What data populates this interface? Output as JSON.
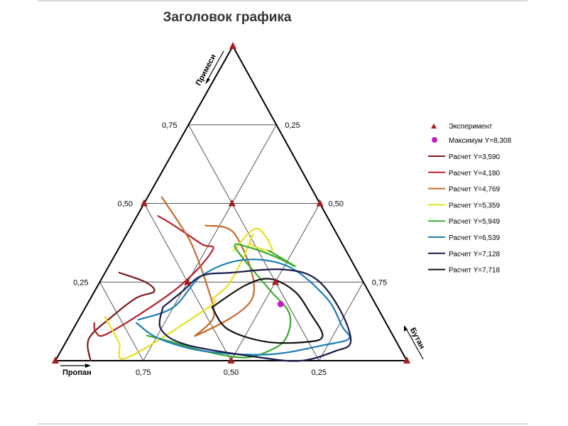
{
  "chart_data": {
    "type": "ternary",
    "title": "Заголовок графика",
    "axes": {
      "top": "Примеси",
      "left": "Пропан",
      "right": "Бутан"
    },
    "ticks": {
      "left_side": [
        "0,75",
        "0,50",
        "0,25"
      ],
      "right_side": [
        "0,25",
        "0,50",
        "0,75"
      ],
      "bottom_side": [
        "0,75",
        "0,50",
        "0,25"
      ]
    },
    "grid": true,
    "legend_position": "right",
    "experiment": {
      "label": "Эксперимент",
      "color": "#a31f1f",
      "points": [
        {
          "a": 1,
          "b": 0,
          "c": 0
        },
        {
          "a": 0,
          "b": 1,
          "c": 0
        },
        {
          "a": 0,
          "b": 0,
          "c": 1
        },
        {
          "a": 0.5,
          "b": 0.5,
          "c": 0
        },
        {
          "a": 0.5,
          "b": 0,
          "c": 0.5
        },
        {
          "a": 0,
          "b": 0.5,
          "c": 0.5
        },
        {
          "a": 0.5,
          "b": 0.25,
          "c": 0.25
        },
        {
          "a": 0.25,
          "b": 0.5,
          "c": 0.25
        },
        {
          "a": 0.25,
          "b": 0.25,
          "c": 0.5
        }
      ]
    },
    "maximum": {
      "label": "Максимум Y=8,308",
      "color": "#c020c0",
      "point": {
        "a": 0.18,
        "b": 0.27,
        "c": 0.55
      }
    },
    "contours": [
      {
        "name": "Расчет Y=3,590",
        "color": "#7a1a1a",
        "points": [
          [
            0.28,
            0.68,
            0.04
          ],
          [
            0.25,
            0.62,
            0.13
          ],
          [
            0.22,
            0.61,
            0.17
          ],
          [
            0.2,
            0.67,
            0.13
          ],
          [
            0.14,
            0.77,
            0.09
          ],
          [
            0.07,
            0.87,
            0.06
          ],
          [
            0.0,
            0.9,
            0.1
          ]
        ]
      },
      {
        "name": "Расчет Y=4,180",
        "color": "#b3222a",
        "points": [
          [
            0.12,
            0.83,
            0.05
          ],
          [
            0.09,
            0.84,
            0.07
          ],
          [
            0.09,
            0.8,
            0.11
          ],
          [
            0.23,
            0.54,
            0.23
          ],
          [
            0.35,
            0.38,
            0.27
          ],
          [
            0.37,
            0.4,
            0.23
          ],
          [
            0.43,
            0.45,
            0.12
          ],
          [
            0.46,
            0.48,
            0.06
          ]
        ]
      },
      {
        "name": "Расчет Y=4,769",
        "color": "#c76a2a",
        "points": [
          [
            0.52,
            0.44,
            0.04
          ],
          [
            0.42,
            0.43,
            0.15
          ],
          [
            0.36,
            0.43,
            0.21
          ],
          [
            0.24,
            0.45,
            0.31
          ],
          [
            0.14,
            0.48,
            0.38
          ],
          [
            0.08,
            0.56,
            0.36
          ],
          [
            0.2,
            0.34,
            0.46
          ],
          [
            0.4,
            0.29,
            0.31
          ],
          [
            0.43,
            0.36,
            0.21
          ]
        ]
      },
      {
        "name": "Расчет Y=5,359",
        "color": "#e8e020",
        "points": [
          [
            0.14,
            0.79,
            0.07
          ],
          [
            0.06,
            0.79,
            0.15
          ],
          [
            0.01,
            0.79,
            0.2
          ],
          [
            0.17,
            0.48,
            0.35
          ],
          [
            0.2,
            0.45,
            0.35
          ],
          [
            0.24,
            0.39,
            0.37
          ],
          [
            0.32,
            0.31,
            0.37
          ],
          [
            0.4,
            0.24,
            0.36
          ],
          [
            0.37,
            0.26,
            0.37
          ],
          [
            0.35,
            0.21,
            0.44
          ],
          [
            0.42,
            0.22,
            0.36
          ],
          [
            0.35,
            0.32,
            0.33
          ]
        ]
      },
      {
        "name": "Расчет Y=5,949",
        "color": "#3cab2e",
        "points": [
          [
            0.08,
            0.7,
            0.22
          ],
          [
            0.06,
            0.64,
            0.3
          ],
          [
            0.03,
            0.56,
            0.41
          ],
          [
            0.01,
            0.46,
            0.53
          ],
          [
            0.03,
            0.38,
            0.59
          ],
          [
            0.07,
            0.31,
            0.62
          ],
          [
            0.15,
            0.26,
            0.59
          ],
          [
            0.23,
            0.28,
            0.49
          ],
          [
            0.36,
            0.31,
            0.33
          ],
          [
            0.36,
            0.27,
            0.37
          ],
          [
            0.33,
            0.21,
            0.46
          ],
          [
            0.3,
            0.17,
            0.53
          ],
          [
            0.35,
            0.22,
            0.43
          ]
        ]
      },
      {
        "name": "Расчет Y=6,539",
        "color": "#1b7fb5",
        "points": [
          [
            0.12,
            0.71,
            0.17
          ],
          [
            0.07,
            0.67,
            0.26
          ],
          [
            0.03,
            0.56,
            0.41
          ],
          [
            0.02,
            0.38,
            0.6
          ],
          [
            0.05,
            0.21,
            0.74
          ],
          [
            0.07,
            0.13,
            0.8
          ],
          [
            0.11,
            0.13,
            0.76
          ],
          [
            0.2,
            0.13,
            0.67
          ],
          [
            0.3,
            0.19,
            0.51
          ],
          [
            0.32,
            0.31,
            0.37
          ],
          [
            0.27,
            0.45,
            0.28
          ],
          [
            0.17,
            0.58,
            0.25
          ],
          [
            0.13,
            0.7,
            0.17
          ]
        ]
      },
      {
        "name": "Расчет Y=7,128",
        "color": "#1a1a4a",
        "points": [
          [
            0.17,
            0.61,
            0.22
          ],
          [
            0.1,
            0.65,
            0.25
          ],
          [
            0.05,
            0.6,
            0.35
          ],
          [
            0.01,
            0.41,
            0.58
          ],
          [
            0.0,
            0.3,
            0.7
          ],
          [
            0.03,
            0.19,
            0.78
          ],
          [
            0.06,
            0.13,
            0.81
          ],
          [
            0.16,
            0.11,
            0.73
          ],
          [
            0.26,
            0.13,
            0.61
          ],
          [
            0.29,
            0.21,
            0.5
          ],
          [
            0.28,
            0.36,
            0.36
          ],
          [
            0.27,
            0.45,
            0.28
          ],
          [
            0.22,
            0.53,
            0.25
          ],
          [
            0.17,
            0.61,
            0.22
          ]
        ]
      },
      {
        "name": "Расчет Y=7,718",
        "color": "#111111",
        "points": [
          [
            0.17,
            0.47,
            0.36
          ],
          [
            0.1,
            0.46,
            0.44
          ],
          [
            0.06,
            0.37,
            0.57
          ],
          [
            0.06,
            0.25,
            0.69
          ],
          [
            0.08,
            0.2,
            0.72
          ],
          [
            0.15,
            0.2,
            0.65
          ],
          [
            0.22,
            0.21,
            0.57
          ],
          [
            0.26,
            0.26,
            0.48
          ],
          [
            0.24,
            0.34,
            0.42
          ],
          [
            0.17,
            0.47,
            0.36
          ]
        ]
      }
    ]
  }
}
